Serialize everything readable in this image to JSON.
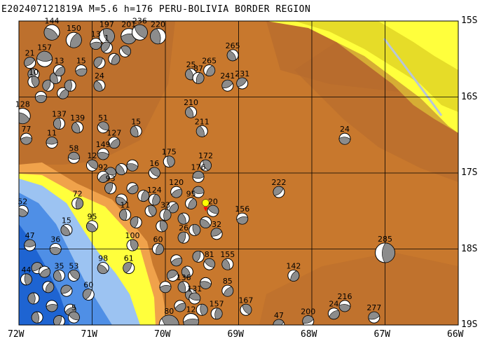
{
  "title": "E202407121819A  M=5.6 h=176 PERU-BOLIVIA BORDER REGION",
  "lon_ticks": [
    "72W",
    "71W",
    "70W",
    "69W",
    "68W",
    "67W",
    "66W"
  ],
  "lat_ticks": [
    "15S",
    "16S",
    "17S",
    "18S",
    "19S"
  ],
  "extent": {
    "lon_min": -72,
    "lon_max": -66,
    "lat_min": -19,
    "lat_max": -15
  },
  "grid": true,
  "colors": {
    "ocean_deep": "#1e64d2",
    "ocean_mid": "#4f8fe6",
    "ocean_shallow": "#9cc3f2",
    "coast": "#ffff3c",
    "lowland": "#e6dc28",
    "foothill": "#f0a24b",
    "highland": "#c8782d",
    "altiplano": "#b4692d",
    "peak": "#8c4b1e",
    "river": "#b8c6d8",
    "grid": "#000000",
    "beach_fill": "#ffffff",
    "beach_shade": "#8c8c8c",
    "event": "#ffff00",
    "event_marker": "#ff0000"
  },
  "event": {
    "lon": -69.45,
    "lat": -17.43
  },
  "mechanisms": [
    {
      "label": "144",
      "lon": -71.55,
      "lat": -15.15,
      "size": "m"
    },
    {
      "label": "150",
      "lon": -71.25,
      "lat": -15.25,
      "size": "m"
    },
    {
      "label": "197",
      "lon": -70.8,
      "lat": -15.2,
      "size": "m"
    },
    {
      "label": "201",
      "lon": -70.5,
      "lat": -15.2,
      "size": "m"
    },
    {
      "label": "236",
      "lon": -70.35,
      "lat": -15.15,
      "size": "m"
    },
    {
      "label": "220",
      "lon": -70.1,
      "lat": -15.2,
      "size": "m"
    },
    {
      "label": "13",
      "lon": -70.95,
      "lat": -15.3,
      "size": "s"
    },
    {
      "label": "1",
      "lon": -70.8,
      "lat": -15.35,
      "size": "s"
    },
    {
      "label": "265",
      "lon": -69.08,
      "lat": -15.45,
      "size": "s"
    },
    {
      "label": "157",
      "lon": -71.65,
      "lat": -15.5,
      "size": "m"
    },
    {
      "label": "21",
      "lon": -71.85,
      "lat": -15.55,
      "size": "s"
    },
    {
      "label": "13",
      "lon": -71.45,
      "lat": -15.65,
      "size": "s"
    },
    {
      "label": "15",
      "lon": -71.15,
      "lat": -15.65,
      "size": "s"
    },
    {
      "label": "25",
      "lon": -69.65,
      "lat": -15.7,
      "size": "s"
    },
    {
      "label": "265",
      "lon": -69.4,
      "lat": -15.65,
      "size": "s"
    },
    {
      "label": "87",
      "lon": -69.55,
      "lat": -15.75,
      "size": "s"
    },
    {
      "label": "24",
      "lon": -70.9,
      "lat": -15.85,
      "size": "s"
    },
    {
      "label": "241",
      "lon": -69.15,
      "lat": -15.85,
      "size": "s"
    },
    {
      "label": "231",
      "lon": -68.95,
      "lat": -15.82,
      "size": "s"
    },
    {
      "label": "10",
      "lon": -71.8,
      "lat": -15.8,
      "size": "s"
    },
    {
      "label": "128",
      "lon": -71.95,
      "lat": -16.25,
      "size": "m"
    },
    {
      "label": "210",
      "lon": -69.65,
      "lat": -16.2,
      "size": "s"
    },
    {
      "label": "137",
      "lon": -71.45,
      "lat": -16.35,
      "size": "s"
    },
    {
      "label": "139",
      "lon": -71.2,
      "lat": -16.4,
      "size": "s"
    },
    {
      "label": "51",
      "lon": -70.85,
      "lat": -16.4,
      "size": "s"
    },
    {
      "label": "15",
      "lon": -70.4,
      "lat": -16.45,
      "size": "s"
    },
    {
      "label": "211",
      "lon": -69.5,
      "lat": -16.45,
      "size": "s"
    },
    {
      "label": "24",
      "lon": -67.55,
      "lat": -16.55,
      "size": "s"
    },
    {
      "label": "77",
      "lon": -71.9,
      "lat": -16.55,
      "size": "s"
    },
    {
      "label": "11",
      "lon": -71.55,
      "lat": -16.6,
      "size": "s"
    },
    {
      "label": "127",
      "lon": -70.7,
      "lat": -16.6,
      "size": "s"
    },
    {
      "label": "149",
      "lon": -70.85,
      "lat": -16.75,
      "size": "s"
    },
    {
      "label": "58",
      "lon": -71.25,
      "lat": -16.8,
      "size": "s"
    },
    {
      "label": "12",
      "lon": -71.0,
      "lat": -16.9,
      "size": "s"
    },
    {
      "label": "175",
      "lon": -69.95,
      "lat": -16.85,
      "size": "s"
    },
    {
      "label": "172",
      "lon": -69.45,
      "lat": -16.9,
      "size": "s"
    },
    {
      "label": "16",
      "lon": -70.15,
      "lat": -17.0,
      "size": "s"
    },
    {
      "label": "176",
      "lon": -69.55,
      "lat": -17.05,
      "size": "s"
    },
    {
      "label": "222",
      "lon": -68.45,
      "lat": -17.25,
      "size": "s"
    },
    {
      "label": "93",
      "lon": -70.75,
      "lat": -17.2,
      "size": "s"
    },
    {
      "label": "72",
      "lon": -71.2,
      "lat": -17.4,
      "size": "s"
    },
    {
      "label": "52",
      "lon": -71.95,
      "lat": -17.5,
      "size": "s"
    },
    {
      "label": "95",
      "lon": -71.0,
      "lat": -17.7,
      "size": "s"
    },
    {
      "label": "156",
      "lon": -68.95,
      "lat": -17.6,
      "size": "s"
    },
    {
      "label": "15",
      "lon": -71.35,
      "lat": -17.75,
      "size": "s"
    },
    {
      "label": "32",
      "lon": -69.3,
      "lat": -17.8,
      "size": "s"
    },
    {
      "label": "47",
      "lon": -71.85,
      "lat": -17.95,
      "size": "s"
    },
    {
      "label": "36",
      "lon": -71.5,
      "lat": -18.0,
      "size": "s"
    },
    {
      "label": "100",
      "lon": -70.45,
      "lat": -17.95,
      "size": "s"
    },
    {
      "label": "285",
      "lon": -67.0,
      "lat": -18.05,
      "size": "l"
    },
    {
      "label": "98",
      "lon": -70.85,
      "lat": -18.25,
      "size": "s"
    },
    {
      "label": "61",
      "lon": -70.5,
      "lat": -18.25,
      "size": "s"
    },
    {
      "label": "155",
      "lon": -69.15,
      "lat": -18.2,
      "size": "s"
    },
    {
      "label": "142",
      "lon": -68.25,
      "lat": -18.35,
      "size": "s"
    },
    {
      "label": "44",
      "lon": -71.9,
      "lat": -18.4,
      "size": "s"
    },
    {
      "label": "35",
      "lon": -71.45,
      "lat": -18.35,
      "size": "s"
    },
    {
      "label": "53",
      "lon": -71.25,
      "lat": -18.35,
      "size": "s"
    },
    {
      "label": "60",
      "lon": -71.05,
      "lat": -18.6,
      "size": "s"
    },
    {
      "label": "136",
      "lon": -69.75,
      "lat": -18.5,
      "size": "s"
    },
    {
      "label": "85",
      "lon": -69.15,
      "lat": -18.55,
      "size": "s"
    },
    {
      "label": "131",
      "lon": -69.6,
      "lat": -18.65,
      "size": "s"
    },
    {
      "label": "167",
      "lon": -68.9,
      "lat": -18.8,
      "size": "s"
    },
    {
      "label": "216",
      "lon": -67.55,
      "lat": -18.75,
      "size": "s"
    },
    {
      "label": "157",
      "lon": -69.3,
      "lat": -18.85,
      "size": "s"
    },
    {
      "label": "24",
      "lon": -67.7,
      "lat": -18.85,
      "size": "s"
    },
    {
      "label": "277",
      "lon": -67.15,
      "lat": -18.9,
      "size": "s"
    },
    {
      "label": "200",
      "lon": -68.05,
      "lat": -18.95,
      "size": "s"
    },
    {
      "label": "47",
      "lon": -68.45,
      "lat": -19.0,
      "size": "s"
    },
    {
      "label": "80",
      "lon": -69.95,
      "lat": -19.0,
      "size": "l"
    },
    {
      "label": "12",
      "lon": -69.65,
      "lat": -18.95,
      "size": "m"
    },
    {
      "label": "5",
      "lon": -71.25,
      "lat": -18.9,
      "size": "s"
    },
    {
      "label": "120",
      "lon": -69.85,
      "lat": -17.25,
      "size": "s"
    },
    {
      "label": "124",
      "lon": -70.15,
      "lat": -17.35,
      "size": "s"
    },
    {
      "label": "95",
      "lon": -69.65,
      "lat": -17.4,
      "size": "s"
    },
    {
      "label": "33",
      "lon": -70.0,
      "lat": -17.55,
      "size": "s"
    },
    {
      "label": "26",
      "lon": -69.75,
      "lat": -17.85,
      "size": "s"
    },
    {
      "label": "20",
      "lon": -69.35,
      "lat": -17.5,
      "size": "s"
    },
    {
      "label": "81",
      "lon": -69.4,
      "lat": -18.2,
      "size": "s"
    },
    {
      "label": "92",
      "lon": -70.85,
      "lat": -17.05,
      "size": "s"
    },
    {
      "label": "11",
      "lon": -70.55,
      "lat": -17.55,
      "size": "s"
    },
    {
      "label": "60",
      "lon": -70.1,
      "lat": -18.0,
      "size": "s"
    }
  ],
  "cluster_south_coast": [
    {
      "lon": -71.75,
      "lat": -18.25
    },
    {
      "lon": -71.6,
      "lat": -18.5
    },
    {
      "lon": -71.8,
      "lat": -18.65
    },
    {
      "lon": -71.55,
      "lat": -18.75
    },
    {
      "lon": -71.35,
      "lat": -18.55
    },
    {
      "lon": -71.65,
      "lat": -18.3
    },
    {
      "lon": -71.45,
      "lat": -18.95
    },
    {
      "lon": -71.75,
      "lat": -18.9
    },
    {
      "lon": -71.3,
      "lat": -18.8
    }
  ],
  "cluster_central": [
    {
      "lon": -70.3,
      "lat": -17.3
    },
    {
      "lon": -70.2,
      "lat": -17.5
    },
    {
      "lon": -70.05,
      "lat": -17.7
    },
    {
      "lon": -69.9,
      "lat": -17.45
    },
    {
      "lon": -69.75,
      "lat": -17.6
    },
    {
      "lon": -69.6,
      "lat": -17.75
    },
    {
      "lon": -69.85,
      "lat": -18.15
    },
    {
      "lon": -69.7,
      "lat": -18.3
    },
    {
      "lon": -69.55,
      "lat": -18.1
    },
    {
      "lon": -69.9,
      "lat": -18.35
    },
    {
      "lon": -69.45,
      "lat": -18.45
    },
    {
      "lon": -69.8,
      "lat": -18.75
    },
    {
      "lon": -69.5,
      "lat": -18.8
    },
    {
      "lon": -69.65,
      "lat": -18.6
    },
    {
      "lon": -70.0,
      "lat": -18.5
    },
    {
      "lon": -70.4,
      "lat": -17.65
    },
    {
      "lon": -70.6,
      "lat": -17.35
    },
    {
      "lon": -70.45,
      "lat": -17.2
    },
    {
      "lon": -69.55,
      "lat": -17.25
    },
    {
      "lon": -69.45,
      "lat": -17.65
    }
  ],
  "cluster_north": [
    {
      "lon": -71.8,
      "lat": -15.7
    },
    {
      "lon": -71.6,
      "lat": -15.85
    },
    {
      "lon": -71.4,
      "lat": -15.95
    },
    {
      "lon": -71.7,
      "lat": -16.0
    },
    {
      "lon": -71.5,
      "lat": -15.75
    },
    {
      "lon": -71.3,
      "lat": -15.85
    },
    {
      "lon": -70.7,
      "lat": -15.5
    },
    {
      "lon": -70.55,
      "lat": -15.4
    },
    {
      "lon": -70.9,
      "lat": -15.55
    },
    {
      "lon": -70.6,
      "lat": -16.95
    },
    {
      "lon": -70.45,
      "lat": -16.9
    },
    {
      "lon": -70.75,
      "lat": -17.0
    }
  ]
}
